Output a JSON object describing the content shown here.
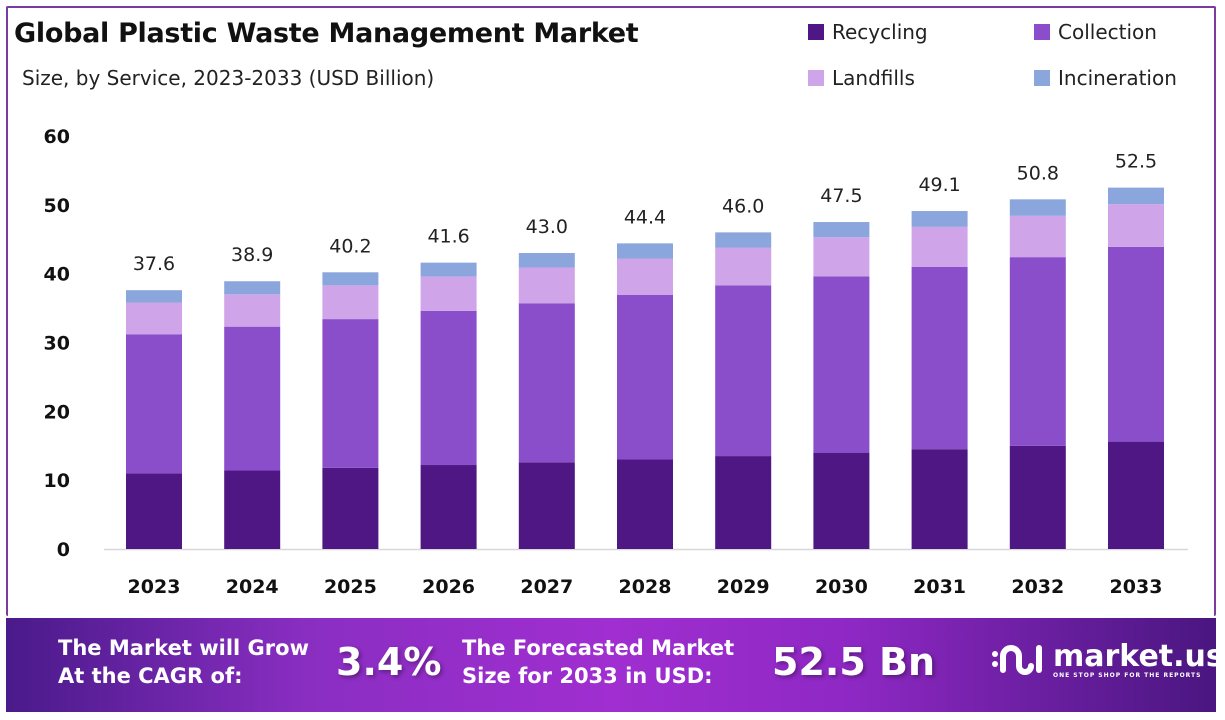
{
  "header": {
    "title": "Global Plastic Waste Management Market",
    "subtitle": "Size, by Service, 2023-2033 (USD Billion)"
  },
  "legend": [
    {
      "label": "Recycling",
      "color": "#4e1784"
    },
    {
      "label": "Collection",
      "color": "#8a4ecb"
    },
    {
      "label": "Landfills",
      "color": "#cfa4e8"
    },
    {
      "label": "Incineration",
      "color": "#8aa6dc"
    }
  ],
  "chart_data": {
    "type": "bar",
    "stacked": true,
    "title": "Global Plastic Waste Management Market",
    "subtitle": "Size, by Service, 2023-2033 (USD Billion)",
    "xlabel": "",
    "ylabel": "",
    "ylim": [
      0,
      60
    ],
    "yticks": [
      0,
      10,
      20,
      30,
      40,
      50,
      60
    ],
    "grid": false,
    "legend_position": "top-right",
    "categories": [
      "2023",
      "2024",
      "2025",
      "2026",
      "2027",
      "2028",
      "2029",
      "2030",
      "2031",
      "2032",
      "2033"
    ],
    "totals": [
      37.6,
      38.9,
      40.2,
      41.6,
      43.0,
      44.4,
      46.0,
      47.5,
      49.1,
      50.8,
      52.5
    ],
    "total_labels": [
      "37.6",
      "38.9",
      "40.2",
      "41.6",
      "43.0",
      "44.4",
      "46.0",
      "47.5",
      "49.1",
      "50.8",
      "52.5"
    ],
    "series": [
      {
        "name": "Recycling",
        "color": "#4e1784",
        "values": [
          11.0,
          11.4,
          11.8,
          12.2,
          12.6,
          13.0,
          13.5,
          14.0,
          14.5,
          15.0,
          15.6
        ]
      },
      {
        "name": "Collection",
        "color": "#8a4ecb",
        "values": [
          20.2,
          20.9,
          21.6,
          22.4,
          23.1,
          23.9,
          24.8,
          25.6,
          26.5,
          27.4,
          28.3
        ]
      },
      {
        "name": "Landfills",
        "color": "#cfa4e8",
        "values": [
          4.6,
          4.7,
          4.9,
          5.0,
          5.2,
          5.3,
          5.5,
          5.7,
          5.8,
          6.0,
          6.2
        ]
      },
      {
        "name": "Incineration",
        "color": "#8aa6dc",
        "values": [
          1.8,
          1.9,
          1.9,
          2.0,
          2.1,
          2.2,
          2.2,
          2.2,
          2.3,
          2.4,
          2.4
        ]
      }
    ]
  },
  "banner": {
    "cagr_text_line1": "The Market will Grow",
    "cagr_text_line2": "At the CAGR of:",
    "cagr_value": "3.4%",
    "forecast_text_line1": "The Forecasted Market",
    "forecast_text_line2": "Size for 2033 in USD:",
    "forecast_value": "52.5 Bn",
    "logo_name": "market.us",
    "logo_tagline": "ONE STOP SHOP FOR THE REPORTS"
  }
}
